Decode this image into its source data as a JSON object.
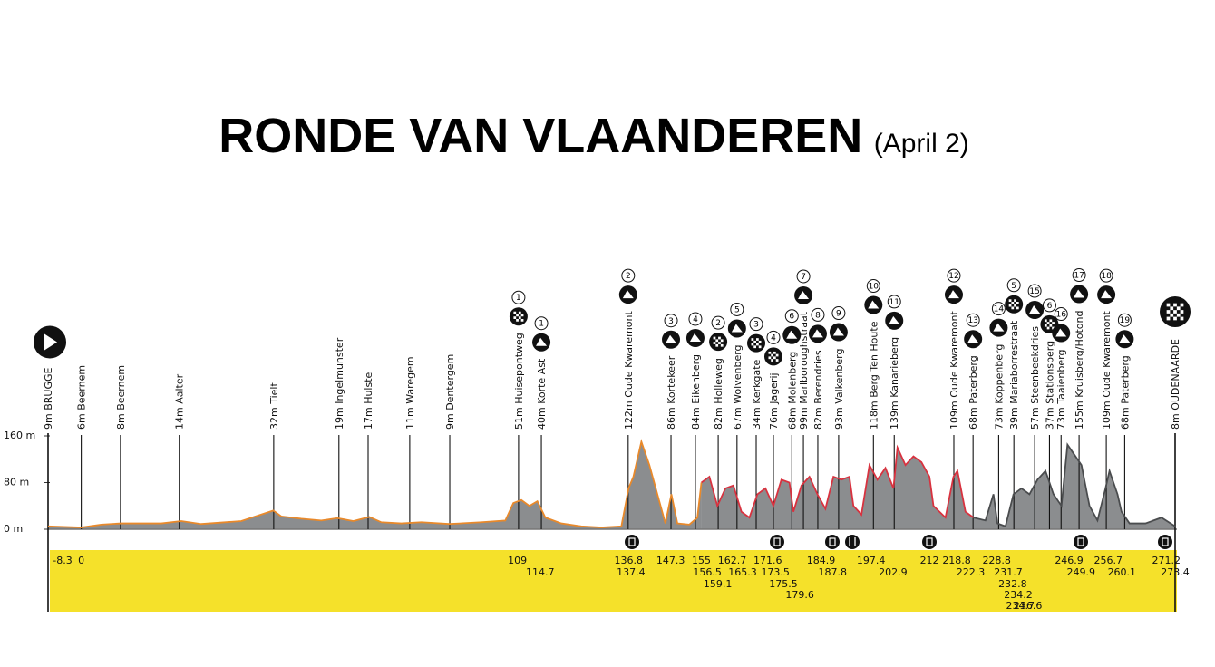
{
  "chart_data": {
    "type": "profile",
    "title": "RONDE VAN VLAANDEREN",
    "subtitle": "(April 2)",
    "xlim": [
      -8.3,
      273.4
    ],
    "ylim": [
      0,
      160
    ],
    "yticks": [
      {
        "value": 0,
        "label": "0 m"
      },
      {
        "value": 80,
        "label": "80 m"
      },
      {
        "value": 160,
        "label": "160 m"
      }
    ],
    "area_color": "#8b8d8f",
    "band_color": "#f5e12a",
    "series": [
      {
        "color": "#e8892b",
        "x": [
          -8.3,
          0,
          5,
          10,
          20,
          25,
          30,
          40,
          48,
          50,
          55,
          60,
          64,
          68,
          72,
          75,
          80,
          85,
          92,
          100,
          106,
          108,
          110,
          112,
          114,
          116,
          120,
          125,
          130,
          135,
          136.8,
          138,
          140,
          142,
          144,
          146,
          147.5,
          149,
          152,
          154,
          155
        ],
        "values": [
          5,
          3,
          8,
          10,
          10,
          14,
          9,
          14,
          32,
          22,
          18,
          15,
          19,
          14,
          21,
          12,
          10,
          12,
          9,
          12,
          15,
          45,
          50,
          40,
          48,
          20,
          10,
          5,
          3,
          5,
          70,
          90,
          150,
          110,
          60,
          10,
          60,
          10,
          8,
          20,
          80
        ]
      },
      {
        "color": "#d8323f",
        "x": [
          155,
          157,
          159,
          161,
          163,
          165,
          167,
          169,
          171,
          173,
          175,
          177,
          178,
          180,
          182,
          184,
          186,
          188,
          190,
          192,
          193,
          195,
          197,
          199,
          201,
          203,
          204,
          206,
          208,
          210,
          212,
          213,
          216,
          218,
          219,
          221,
          223
        ],
        "values": [
          80,
          90,
          40,
          70,
          75,
          30,
          20,
          60,
          70,
          40,
          85,
          80,
          30,
          75,
          90,
          60,
          35,
          90,
          85,
          90,
          40,
          25,
          110,
          85,
          105,
          70,
          140,
          110,
          125,
          115,
          90,
          40,
          20,
          90,
          100,
          30,
          20
        ]
      },
      {
        "color": "#4a4c4e",
        "x": [
          223,
          226,
          228,
          229,
          231,
          233,
          235,
          237,
          239,
          241,
          243,
          245,
          246.5,
          248,
          250,
          252,
          254,
          256,
          257,
          259,
          260,
          262,
          266,
          270,
          273.4
        ],
        "values": [
          20,
          15,
          60,
          10,
          5,
          60,
          70,
          60,
          85,
          100,
          60,
          40,
          145,
          130,
          110,
          40,
          15,
          70,
          100,
          60,
          30,
          10,
          10,
          20,
          5
        ]
      }
    ],
    "locations": [
      {
        "label": "9m BRUGGE",
        "km": -8.3,
        "icon": "start"
      },
      {
        "label": "6m Beernem",
        "km": 0
      },
      {
        "label": "8m Beernem",
        "km": 9.8
      },
      {
        "label": "14m Aalter",
        "km": 24.5
      },
      {
        "label": "32m Tielt",
        "km": 48.1
      },
      {
        "label": "19m Ingelmunster",
        "km": 64.4
      },
      {
        "label": "17m Hulste",
        "km": 71.7
      },
      {
        "label": "11m Waregem",
        "km": 82.1
      },
      {
        "label": "9m Dentergem",
        "km": 92.1
      },
      {
        "label": "51m Huisepontweg",
        "km": 109.3,
        "icon": "cobble",
        "number": 1
      },
      {
        "label": "40m Korte Ast",
        "km": 115,
        "icon": "climb",
        "number": 1
      },
      {
        "label": "122m Oude Kwaremont",
        "km": 136.7,
        "icon": "climb",
        "number": 2
      },
      {
        "label": "86m Kortekeer",
        "km": 147.4,
        "icon": "climb",
        "number": 3
      },
      {
        "label": "84m Eikenberg",
        "km": 153.5,
        "icon": "climb",
        "number": 4
      },
      {
        "label": "82m Holleweg",
        "km": 159.2,
        "icon": "cobble",
        "number": 2
      },
      {
        "label": "67m Wolvenberg",
        "km": 163.9,
        "icon": "climb",
        "number": 5
      },
      {
        "label": "34m Kerkgate",
        "km": 168.7,
        "icon": "cobble",
        "number": 3
      },
      {
        "label": "76m Jagerij",
        "km": 173,
        "icon": "cobble",
        "number": 4
      },
      {
        "label": "68m Molenberg",
        "km": 177.6,
        "icon": "climb",
        "number": 6
      },
      {
        "label": "99m Marlboroughstraat",
        "km": 180.5,
        "icon": "climb",
        "number": 7
      },
      {
        "label": "82m Berendries",
        "km": 184.1,
        "icon": "climb",
        "number": 8
      },
      {
        "label": "93m Valkenberg",
        "km": 189.3,
        "icon": "climb",
        "number": 9
      },
      {
        "label": "118m Berg Ten Houte",
        "km": 198,
        "icon": "climb",
        "number": 10
      },
      {
        "label": "139m Kanarieberg",
        "km": 203.2,
        "icon": "climb",
        "number": 11
      },
      {
        "label": "109m Oude Kwaremont",
        "km": 218.1,
        "icon": "climb",
        "number": 12
      },
      {
        "label": "68m Paterberg",
        "km": 222.9,
        "icon": "climb",
        "number": 13
      },
      {
        "label": "73m Koppenberg",
        "km": 229.3,
        "icon": "climb",
        "number": 14
      },
      {
        "label": "39m Mariaborrestraat",
        "km": 233.1,
        "icon": "cobble",
        "number": 5
      },
      {
        "label": "57m Steenbeekdries",
        "km": 238.3,
        "icon": "climb",
        "number": 15
      },
      {
        "label": "37m Stationsberg",
        "km": 242,
        "icon": "cobble",
        "number": 6
      },
      {
        "label": "73m Taaienberg",
        "km": 244.9,
        "icon": "climb",
        "number": 16
      },
      {
        "label": "155m Kruisberg/Hotond",
        "km": 249.4,
        "icon": "climb",
        "number": 17
      },
      {
        "label": "109m Oude Kwaremont",
        "km": 256.2,
        "icon": "climb",
        "number": 18
      },
      {
        "label": "68m Paterberg",
        "km": 260.8,
        "icon": "climb",
        "number": 19
      },
      {
        "label": "8m OUDENAARDE",
        "km": 273.4,
        "icon": "finish"
      }
    ],
    "km_marks": [
      -8.3,
      0,
      109,
      114.7,
      136.8,
      137.4,
      147.3,
      155,
      156.5,
      159.1,
      162.7,
      165.3,
      171.6,
      173.5,
      175.5,
      179.6,
      184.9,
      187.8,
      197.4,
      202.9,
      212,
      218.8,
      222.3,
      228.8,
      231.7,
      232.8,
      234.2,
      234.7,
      236.6,
      246.9,
      249.9,
      256.7,
      260.1,
      271.2,
      273.4
    ]
  }
}
